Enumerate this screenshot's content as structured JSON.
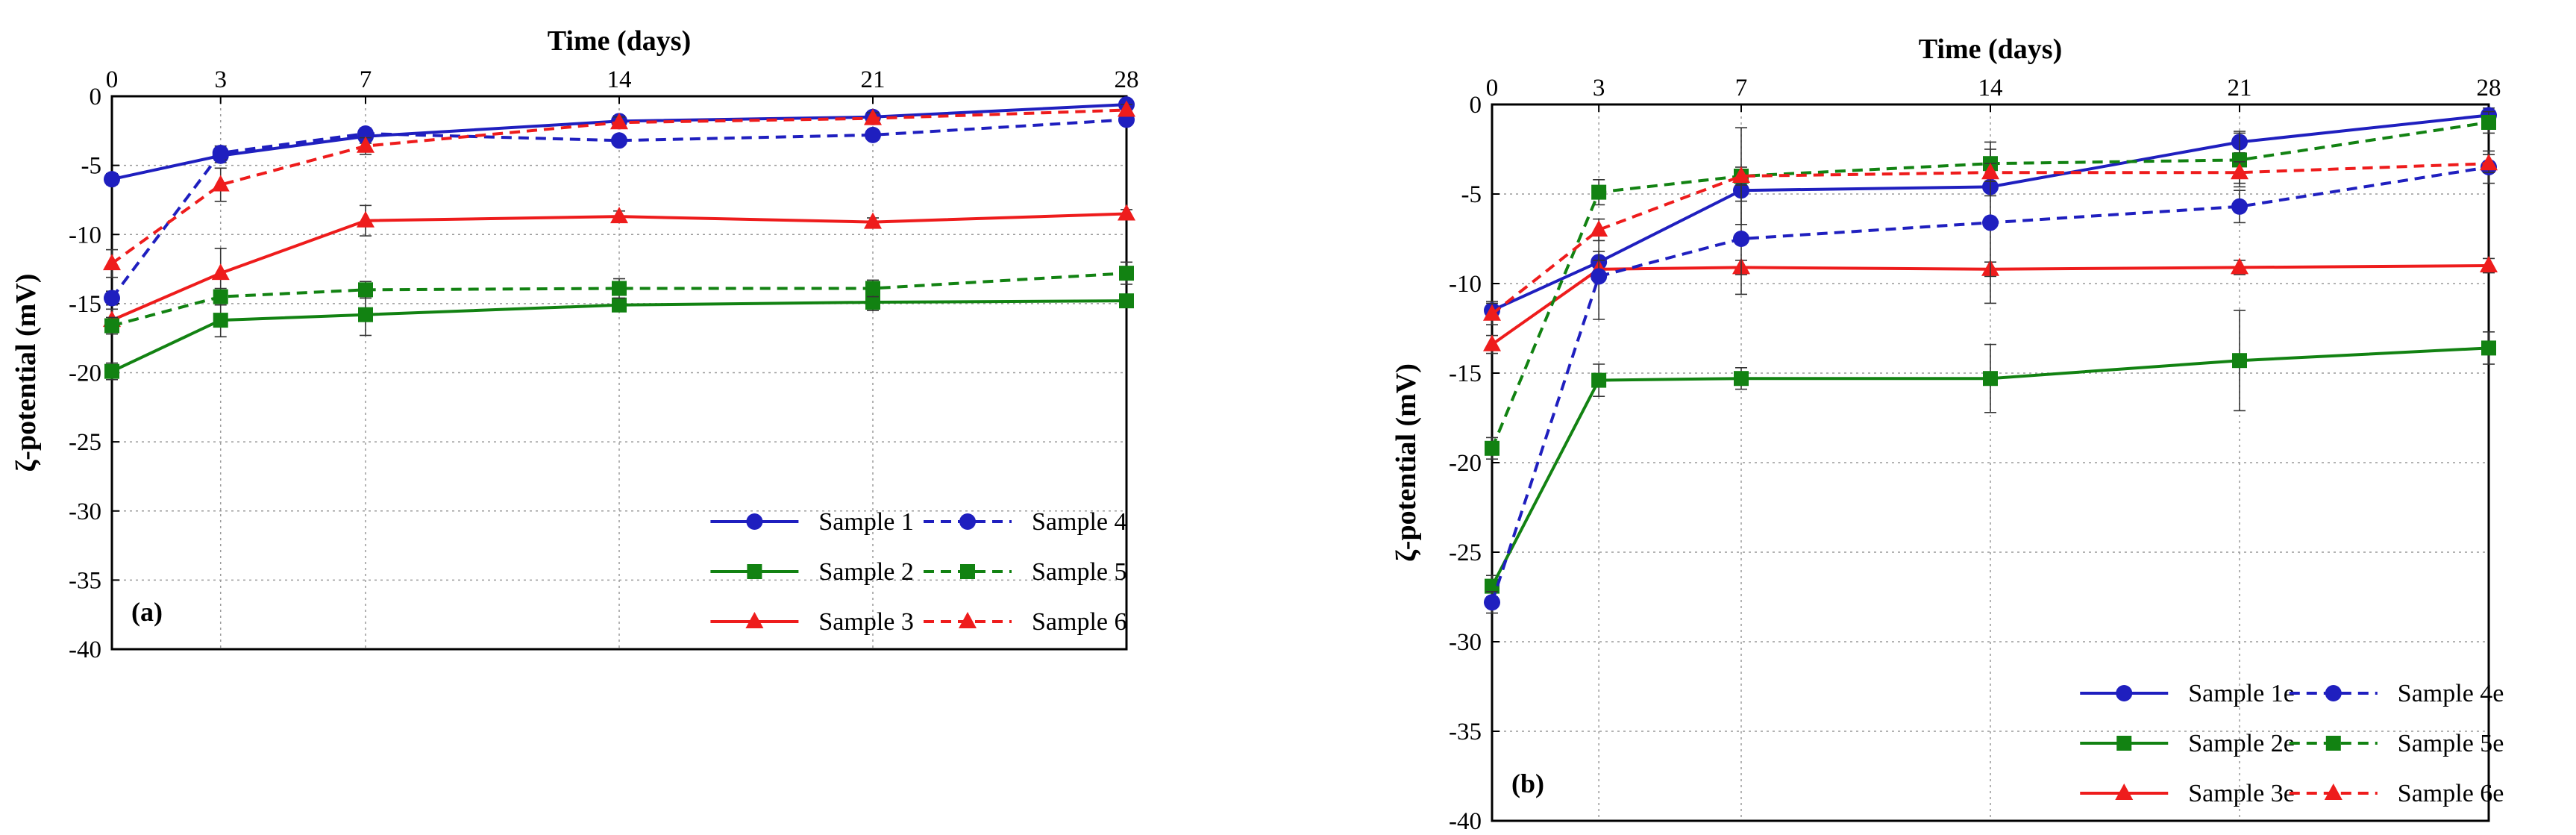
{
  "figure": {
    "colors": {
      "blue": "#1f1fbf",
      "green": "#128212",
      "red": "#ee1c1c",
      "grid": "#9a9a9a"
    },
    "panels": [
      "a",
      "b"
    ]
  },
  "chart_data": [
    {
      "type": "line",
      "panel_label": "(a)",
      "xlabel": "Time (days)",
      "ylabel": "ζ-potential (mV)",
      "x": [
        0,
        3,
        7,
        14,
        21,
        28
      ],
      "x_ticks": [
        "0",
        "3",
        "7",
        "14",
        "21",
        "28"
      ],
      "xlim": [
        0,
        28
      ],
      "ylim": [
        -40,
        0
      ],
      "y_ticks": [
        "0",
        "-5",
        "-10",
        "-15",
        "-20",
        "-25",
        "-30",
        "-35",
        "-40"
      ],
      "x_axis_position": "top",
      "grid": true,
      "legend": "bottom-right",
      "series": [
        {
          "name": "Sample 1",
          "color": "blue",
          "marker": "circle",
          "dash": false,
          "values": [
            -6.0,
            -4.3,
            -2.9,
            -1.8,
            -1.5,
            -0.6
          ],
          "errors": [
            0.4,
            0.5,
            0.5,
            0.4,
            0.3,
            0.3
          ]
        },
        {
          "name": "Sample 2",
          "color": "green",
          "marker": "square",
          "dash": false,
          "values": [
            -19.9,
            -16.2,
            -15.8,
            -15.1,
            -14.9,
            -14.8
          ],
          "errors": [
            0.6,
            1.2,
            1.5,
            0.4,
            0.6,
            0.3
          ]
        },
        {
          "name": "Sample 3",
          "color": "red",
          "marker": "triangle",
          "dash": false,
          "values": [
            -16.2,
            -12.8,
            -9.0,
            -8.7,
            -9.1,
            -8.5
          ],
          "errors": [
            0.8,
            1.8,
            1.1,
            0.4,
            0.3,
            0.3
          ]
        },
        {
          "name": "Sample 4",
          "color": "blue",
          "marker": "circle",
          "dash": true,
          "values": [
            -14.6,
            -4.1,
            -2.7,
            -3.2,
            -2.8,
            -1.7
          ],
          "errors": [
            0.5,
            0.5,
            0.4,
            0.3,
            0.3,
            0.3
          ]
        },
        {
          "name": "Sample 5",
          "color": "green",
          "marker": "square",
          "dash": true,
          "values": [
            -16.6,
            -14.5,
            -14.0,
            -13.9,
            -13.9,
            -12.8
          ],
          "errors": [
            0.6,
            0.6,
            0.6,
            0.7,
            0.6,
            0.8
          ]
        },
        {
          "name": "Sample 6",
          "color": "red",
          "marker": "triangle",
          "dash": true,
          "values": [
            -12.1,
            -6.4,
            -3.6,
            -1.9,
            -1.6,
            -1.0
          ],
          "errors": [
            1.0,
            1.2,
            0.6,
            0.4,
            0.4,
            0.4
          ]
        }
      ]
    },
    {
      "type": "line",
      "panel_label": "(b)",
      "xlabel": "Time (days)",
      "ylabel": "ζ-potential (mV)",
      "x": [
        0,
        3,
        7,
        14,
        21,
        28
      ],
      "x_ticks": [
        "0",
        "3",
        "7",
        "14",
        "21",
        "28"
      ],
      "xlim": [
        0,
        28
      ],
      "ylim": [
        -40,
        0
      ],
      "y_ticks": [
        "0",
        "-5",
        "-10",
        "-15",
        "-20",
        "-25",
        "-30",
        "-35",
        "-40"
      ],
      "x_axis_position": "top",
      "grid": true,
      "legend": "bottom-right",
      "series": [
        {
          "name": "Sample 1e",
          "color": "blue",
          "marker": "circle",
          "dash": false,
          "values": [
            -11.5,
            -8.8,
            -4.8,
            -4.6,
            -2.1,
            -0.6
          ],
          "errors": [
            0.5,
            0.6,
            0.6,
            0.5,
            0.6,
            0.4
          ]
        },
        {
          "name": "Sample 2e",
          "color": "green",
          "marker": "square",
          "dash": false,
          "values": [
            -26.9,
            -15.4,
            -15.3,
            -15.3,
            -14.3,
            -13.6
          ],
          "errors": [
            0.6,
            0.9,
            0.6,
            1.9,
            2.8,
            0.9
          ]
        },
        {
          "name": "Sample 3e",
          "color": "red",
          "marker": "triangle",
          "dash": false,
          "values": [
            -13.4,
            -9.2,
            -9.1,
            -9.2,
            -9.1,
            -9.0
          ],
          "errors": [
            0.5,
            0.5,
            0.4,
            0.4,
            0.4,
            0.4
          ]
        },
        {
          "name": "Sample 4e",
          "color": "blue",
          "marker": "circle",
          "dash": true,
          "values": [
            -27.8,
            -9.6,
            -7.5,
            -6.6,
            -5.7,
            -3.5
          ],
          "errors": [
            0.6,
            2.4,
            3.1,
            4.5,
            0.9,
            0.9
          ]
        },
        {
          "name": "Sample 5e",
          "color": "green",
          "marker": "square",
          "dash": true,
          "values": [
            -19.2,
            -4.9,
            -4.0,
            -3.3,
            -3.1,
            -1.0
          ],
          "errors": [
            0.6,
            0.7,
            2.7,
            0.8,
            1.5,
            0.6
          ]
        },
        {
          "name": "Sample 6e",
          "color": "red",
          "marker": "triangle",
          "dash": true,
          "values": [
            -11.7,
            -7.0,
            -4.0,
            -3.8,
            -3.8,
            -3.3
          ],
          "errors": [
            0.6,
            0.6,
            0.5,
            0.5,
            0.6,
            0.5
          ]
        }
      ]
    }
  ]
}
